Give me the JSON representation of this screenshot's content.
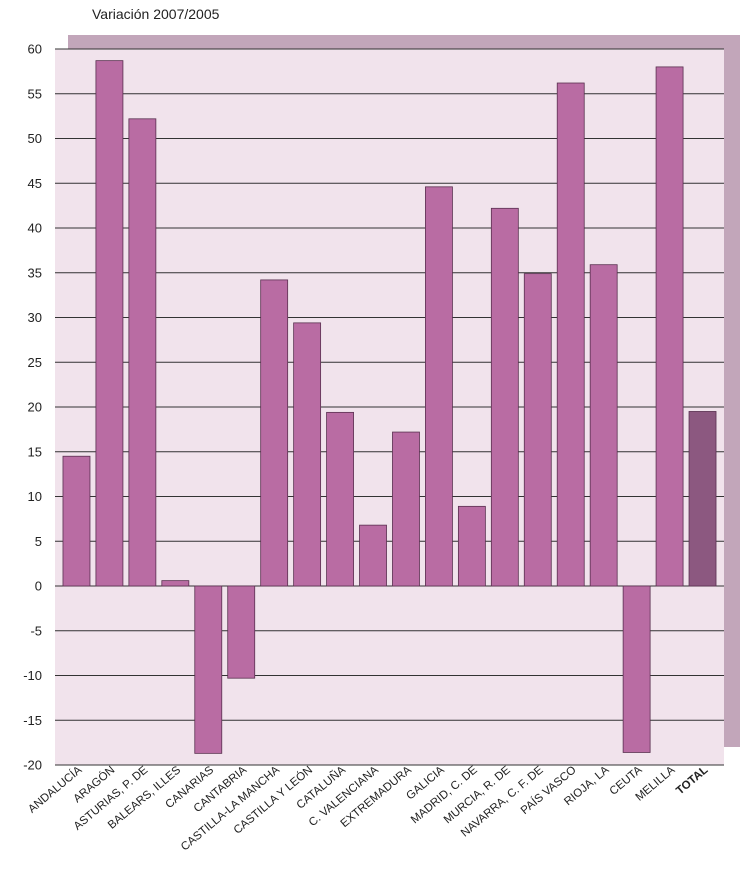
{
  "chart_data": {
    "type": "bar",
    "title": "Variación 2007/2005",
    "xlabel": "",
    "ylabel": "",
    "ylim": [
      -20,
      60
    ],
    "yticks": [
      60,
      55,
      50,
      45,
      40,
      35,
      30,
      25,
      20,
      15,
      10,
      5,
      0,
      -5,
      -10,
      -15,
      -20
    ],
    "grid": true,
    "categories": [
      "ANDALUCÍA",
      "ARAGÓN",
      "ASTURIAS, P. DE",
      "BALEARS, ILLES",
      "CANARIAS",
      "CANTABRIA",
      "CASTILLA-LA MANCHA",
      "CASTILLA Y LEÓN",
      "CATALUÑA",
      "C. VALENCIANA",
      "EXTREMADURA",
      "GALICIA",
      "MADRID, C. DE",
      "MURCIA, R. DE",
      "NAVARRA, C. F. DE",
      "PAÍS VASCO",
      "RIOJA, LA",
      "CEUTA",
      "MELILLA",
      "TOTAL"
    ],
    "values": [
      14.5,
      58.7,
      52.2,
      0.6,
      -18.7,
      -10.3,
      34.2,
      29.4,
      19.4,
      6.8,
      17.2,
      44.6,
      8.9,
      42.2,
      34.9,
      56.2,
      35.9,
      -18.6,
      58.0,
      19.5
    ],
    "highlight_category": "TOTAL",
    "colors": {
      "bar": "#b96ca3",
      "bar_total": "#8c5880",
      "bar_stroke": "#5a3050",
      "plot_bg": "#f1e3ec",
      "frame_shadow": "#c2a6ba",
      "grid": "#333333"
    }
  }
}
